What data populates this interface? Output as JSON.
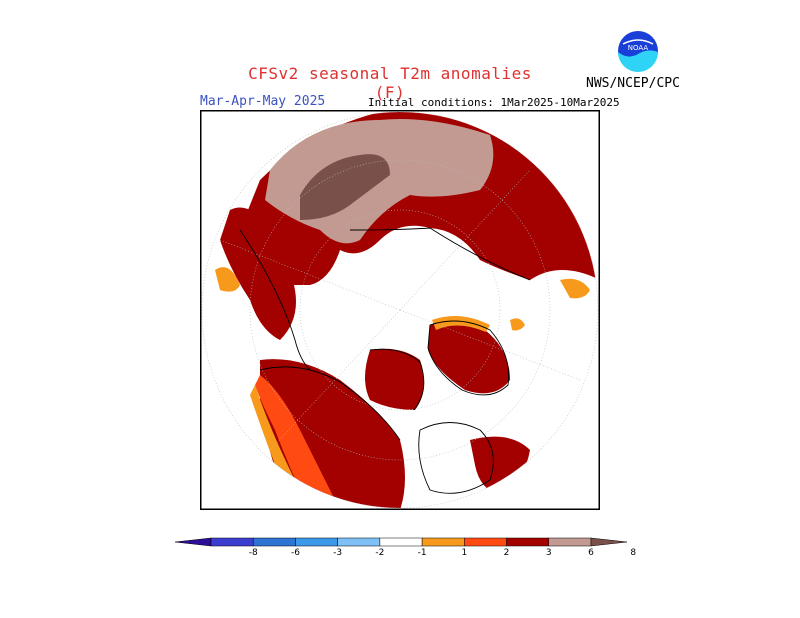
{
  "header": {
    "title": "CFSv2 seasonal T2m anomalies (F)",
    "season": "Mar-Apr-May 2025",
    "initial_conditions": "Initial conditions: 1Mar2025-10Mar2025",
    "agency": "NWS/NCEP/CPC",
    "logo_text": "NOAA"
  },
  "colors": {
    "title": "#e03030",
    "season": "#3b52c4",
    "anom_1_2": "#f79a1c",
    "anom_2_3": "#ff4a12",
    "anom_3_6": "#a30000",
    "anom_6_8": "#c29a92",
    "anom_gt8": "#7a514a",
    "ocean_neutral": "#ffffff"
  },
  "colorbar": {
    "labels": [
      "-8",
      "-6",
      "-3",
      "-2",
      "-1",
      "1",
      "2",
      "3",
      "6",
      "8"
    ],
    "colors": [
      "#2e0f9a",
      "#3b3fd0",
      "#2e74d4",
      "#3c98ea",
      "#7fc0f6",
      "#ffffff",
      "#f79a1c",
      "#ff4a12",
      "#a30000",
      "#c29a92",
      "#7a514a"
    ]
  }
}
